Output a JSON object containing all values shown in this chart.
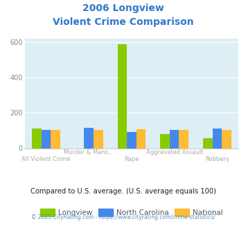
{
  "title_line1": "2006 Longview",
  "title_line2": "Violent Crime Comparison",
  "categories": [
    "All Violent Crime",
    "Murder & Mans...",
    "Rape",
    "Aggravated Assault",
    "Robbery"
  ],
  "longview": [
    110,
    0,
    590,
    80,
    55
  ],
  "north_carolina": [
    105,
    115,
    93,
    105,
    110
  ],
  "national": [
    103,
    103,
    107,
    105,
    103
  ],
  "longview_color": "#88cc00",
  "north_carolina_color": "#4488ee",
  "national_color": "#ffbb33",
  "ylim": [
    0,
    620
  ],
  "yticks": [
    0,
    200,
    400,
    600
  ],
  "bg_color": "#ddeef5",
  "title_color": "#3377cc",
  "xtick_color": "#aaaaaa",
  "footer_text": "Compared to U.S. average. (U.S. average equals 100)",
  "credit_text": "© 2025 CityRating.com - https://www.cityrating.com/crime-statistics/",
  "legend_labels": [
    "Longview",
    "North Carolina",
    "National"
  ],
  "legend_text_color": "#555555",
  "bar_width": 0.22
}
